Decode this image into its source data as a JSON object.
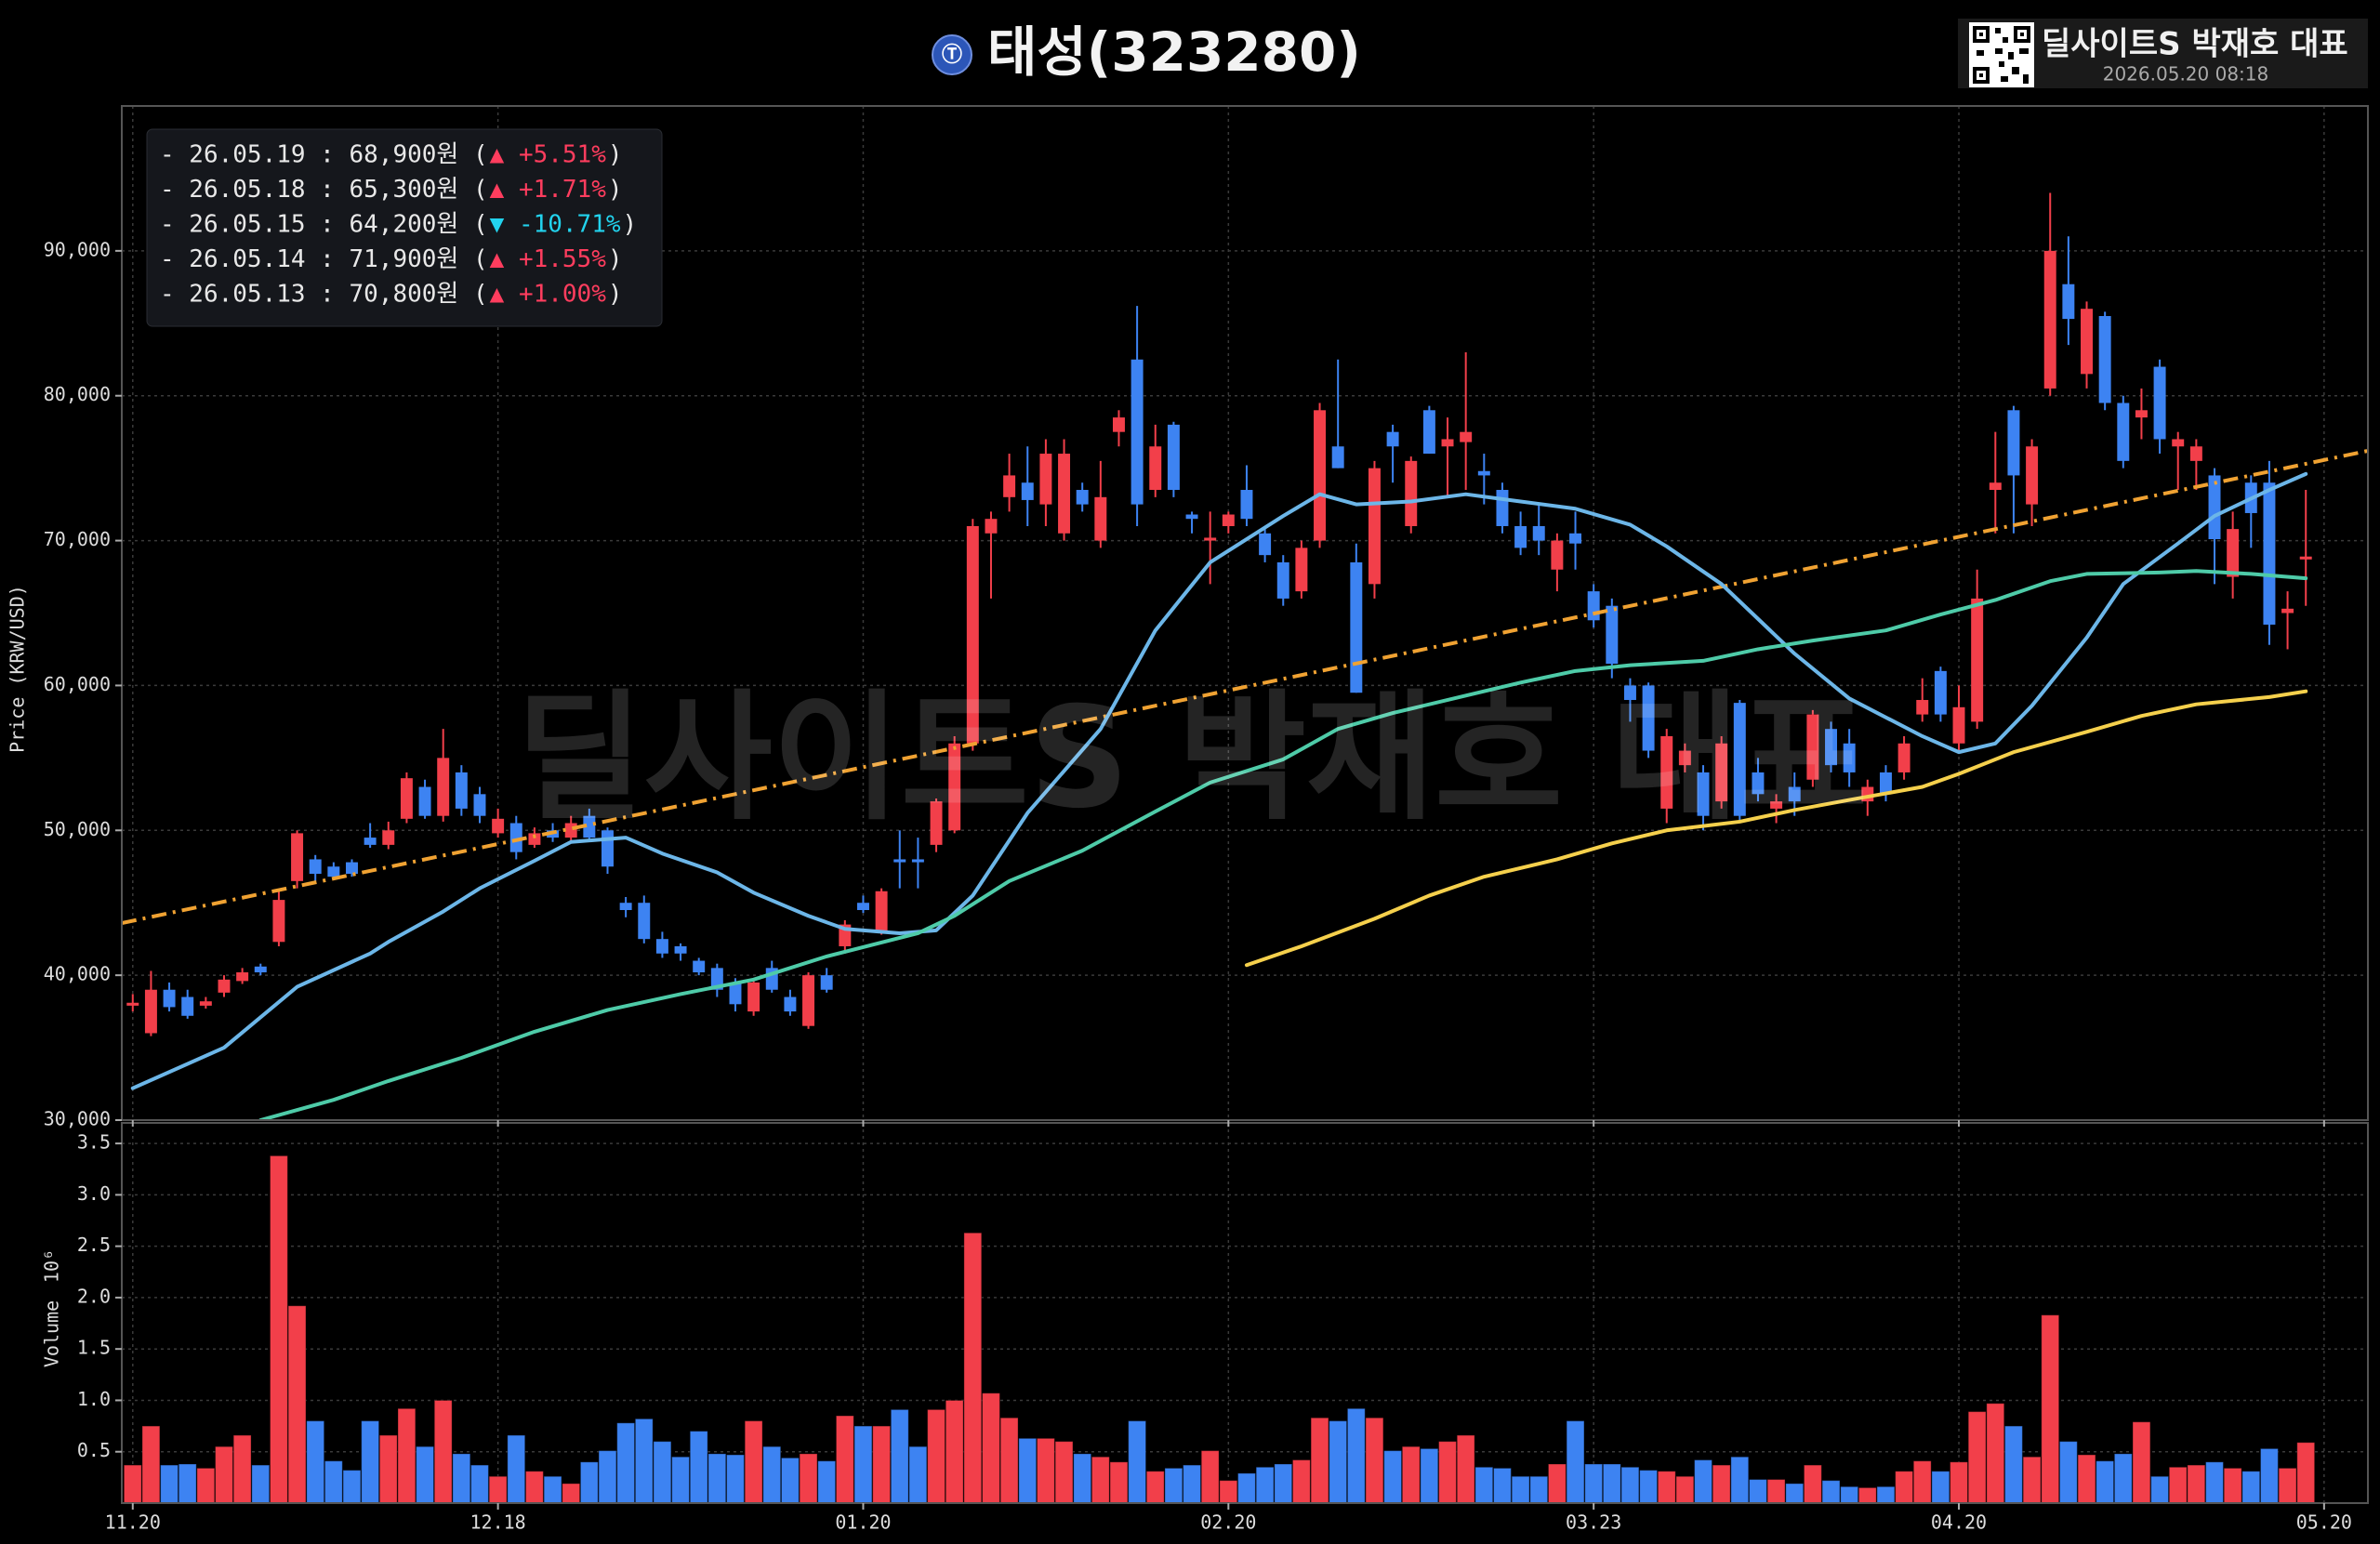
{
  "header": {
    "brand": "딜사이트S 박재호 대표",
    "timestamp": "2026.05.20 08:18"
  },
  "watermark": "딜사이트S 박재호 대표",
  "legend": [
    {
      "text": "- 26.05.19 : 68,900원 (",
      "change": "▲ +5.51%",
      "end": ")",
      "color": "#ff3d5e"
    },
    {
      "text": "- 26.05.18 : 65,300원 (",
      "change": "▲ +1.71%",
      "end": ")",
      "color": "#ff3d5e"
    },
    {
      "text": "- 26.05.15 : 64,200원 (",
      "change": "▼ -10.71%",
      "end": ")",
      "color": "#22d3ee"
    },
    {
      "text": "- 26.05.14 : 71,900원 (",
      "change": "▲ +1.55%",
      "end": ")",
      "color": "#ff3d5e"
    },
    {
      "text": "- 26.05.13 : 70,800원 (",
      "change": "▲ +1.00%",
      "end": ")",
      "color": "#ff3d5e"
    }
  ],
  "chart_data": [
    {
      "type": "candlestick",
      "title": "태성(323280)",
      "ylabel": "Price (KRW/USD)",
      "up_color": "#f23f4a",
      "down_color": "#3d83f2",
      "grid": true,
      "ylim": [
        30000,
        100000
      ],
      "yticks": [
        {
          "value": 30000,
          "label": "30,000"
        },
        {
          "value": 40000,
          "label": "40,000"
        },
        {
          "value": 50000,
          "label": "50,000"
        },
        {
          "value": 60000,
          "label": "60,000"
        },
        {
          "value": 70000,
          "label": "70,000"
        },
        {
          "value": 80000,
          "label": "80,000"
        },
        {
          "value": 90000,
          "label": "90,000"
        }
      ],
      "open": [
        37900,
        36000,
        39000,
        38500,
        37900,
        38800,
        39600,
        40600,
        42300,
        46500,
        48000,
        47500,
        47800,
        49500,
        49000,
        50800,
        53000,
        51000,
        54000,
        52500,
        49800,
        50500,
        49000,
        50000,
        49500,
        51000,
        50000,
        45000,
        45000,
        42500,
        42000,
        41000,
        40500,
        39500,
        37500,
        40500,
        38500,
        36500,
        40000,
        42000,
        45000,
        43000,
        48000,
        48000,
        49000,
        50000,
        56000,
        70500,
        73000,
        74000,
        72500,
        70500,
        73500,
        70000,
        77500,
        82500,
        73500,
        78000,
        71800,
        70000,
        71000,
        73500,
        70500,
        68500,
        66500,
        70000,
        76500,
        68500,
        67000,
        77500,
        71000,
        79000,
        76500,
        76800,
        74800,
        73500,
        71000,
        71000,
        68000,
        70500,
        66500,
        65500,
        60000,
        60000,
        51500,
        54500,
        54000,
        52000,
        58800,
        54000,
        51500,
        53000,
        53500,
        57000,
        56000,
        52000,
        54000,
        54000,
        58000,
        61000,
        56000,
        57500,
        73500,
        79000,
        72500,
        80500,
        87700,
        81500,
        85500,
        79500,
        78500,
        82000,
        76500,
        75500,
        74500,
        67500,
        74000,
        74000,
        65000,
        68700
      ],
      "high": [
        38700,
        40300,
        39500,
        39000,
        38500,
        40000,
        40500,
        40800,
        45800,
        50000,
        48300,
        47800,
        48000,
        50500,
        50600,
        54000,
        53500,
        57000,
        54500,
        53000,
        51500,
        51000,
        50200,
        50500,
        51000,
        51500,
        50200,
        45400,
        45500,
        43000,
        42200,
        41200,
        40800,
        39800,
        39800,
        41000,
        39000,
        40200,
        40500,
        43800,
        45500,
        46000,
        50000,
        49500,
        52200,
        56500,
        71500,
        72000,
        76000,
        76500,
        77000,
        77000,
        74000,
        75500,
        79000,
        86200,
        78000,
        78200,
        72000,
        72000,
        72000,
        75200,
        71000,
        69000,
        70000,
        79500,
        82500,
        69800,
        75500,
        78000,
        75800,
        79300,
        78500,
        83000,
        76000,
        74000,
        72000,
        72500,
        70500,
        72000,
        67000,
        66000,
        60500,
        60200,
        57000,
        56000,
        54500,
        56500,
        59000,
        55000,
        52500,
        54000,
        58300,
        57500,
        57000,
        53500,
        54500,
        56500,
        60500,
        61300,
        60000,
        68000,
        77500,
        79300,
        77000,
        94000,
        91000,
        86500,
        85800,
        80000,
        80500,
        82500,
        77500,
        77000,
        75000,
        72000,
        74500,
        75500,
        66500,
        73500
      ],
      "low": [
        37500,
        35800,
        37500,
        37000,
        37700,
        38500,
        39400,
        40000,
        42000,
        46000,
        46500,
        46600,
        46800,
        48800,
        48700,
        50500,
        50800,
        50600,
        51000,
        50500,
        49500,
        48000,
        48800,
        49200,
        49300,
        49200,
        47000,
        44000,
        42200,
        41200,
        41000,
        40000,
        38500,
        37500,
        37200,
        38800,
        37200,
        36300,
        38800,
        41500,
        44300,
        42800,
        46000,
        46000,
        48500,
        49800,
        55500,
        66000,
        72000,
        71000,
        71000,
        70000,
        72000,
        69500,
        76500,
        71000,
        73000,
        73000,
        70500,
        67000,
        70500,
        71000,
        68500,
        65500,
        66000,
        69500,
        75000,
        59500,
        66000,
        74000,
        70500,
        76000,
        73000,
        73500,
        72500,
        70500,
        69000,
        69000,
        66500,
        68000,
        64000,
        60500,
        57500,
        55000,
        50500,
        54000,
        50000,
        51500,
        50500,
        52000,
        50500,
        51000,
        53000,
        54000,
        53000,
        51000,
        52000,
        53500,
        57500,
        57500,
        55500,
        57000,
        70500,
        70500,
        71000,
        80000,
        83500,
        80500,
        79000,
        75000,
        77000,
        76000,
        73500,
        73500,
        67000,
        66000,
        69500,
        62800,
        62500,
        65500
      ],
      "close": [
        38100,
        39000,
        37800,
        37200,
        38200,
        39700,
        40200,
        40200,
        45200,
        49800,
        47000,
        46800,
        47000,
        49000,
        50000,
        53600,
        51000,
        55000,
        51500,
        51000,
        50800,
        48500,
        49800,
        49500,
        50500,
        49500,
        47500,
        44500,
        42500,
        41500,
        41500,
        40200,
        39000,
        38000,
        39500,
        39000,
        37500,
        40000,
        39000,
        43500,
        44500,
        45800,
        47800,
        47800,
        52000,
        56000,
        71000,
        71500,
        74500,
        72800,
        76000,
        76000,
        72500,
        73000,
        78500,
        72500,
        76500,
        73500,
        71500,
        70200,
        71800,
        71500,
        69000,
        66000,
        69500,
        79000,
        75000,
        59500,
        75000,
        76500,
        75500,
        76000,
        77000,
        77500,
        74500,
        71000,
        69500,
        70000,
        70000,
        69800,
        64500,
        61500,
        59000,
        55500,
        56500,
        55500,
        51000,
        56000,
        51000,
        52500,
        52000,
        52000,
        58000,
        54500,
        54000,
        53000,
        52500,
        56000,
        59000,
        58000,
        58500,
        66000,
        74000,
        74500,
        76500,
        90000,
        85300,
        86000,
        79500,
        75500,
        79000,
        77000,
        77000,
        76500,
        70100,
        70800,
        71900,
        64200,
        65300,
        68900
      ],
      "series": [
        {
          "color": "#f0a232",
          "style": "dashdot",
          "x": [
            -0.6,
            122.4
          ],
          "values": [
            43600,
            76200
          ]
        },
        {
          "color": "#6cb6e8",
          "x": [
            0,
            5,
            9,
            13,
            14,
            17,
            19,
            22,
            24,
            27,
            29,
            32,
            34,
            37,
            39,
            42,
            44,
            46,
            49,
            53,
            56,
            59,
            63,
            65,
            67,
            70,
            73,
            76,
            79,
            82,
            84,
            87,
            91,
            94,
            98,
            100,
            102,
            104,
            107,
            109,
            112,
            114,
            117,
            119
          ],
          "values": [
            32200,
            35000,
            39200,
            41500,
            42300,
            44400,
            46000,
            47900,
            49200,
            49500,
            48400,
            47100,
            45700,
            44100,
            43200,
            42900,
            43100,
            45500,
            51200,
            57000,
            63800,
            68500,
            71700,
            73200,
            72500,
            72700,
            73200,
            72700,
            72200,
            71100,
            69600,
            67000,
            62200,
            59100,
            56500,
            55400,
            56000,
            58600,
            63300,
            67000,
            69800,
            71700,
            73500,
            74600
          ]
        },
        {
          "color": "#4ecba8",
          "x": [
            7,
            11,
            14,
            18,
            22,
            26,
            30,
            34,
            38,
            43,
            45,
            48,
            52,
            56,
            59,
            63,
            66,
            69,
            73,
            76,
            79,
            82,
            86,
            89,
            92,
            96,
            99,
            102,
            105,
            107,
            111,
            113,
            116,
            119
          ],
          "values": [
            30000,
            31400,
            32700,
            34300,
            36100,
            37600,
            38700,
            39700,
            41300,
            42900,
            44100,
            46500,
            48600,
            51300,
            53300,
            54900,
            57000,
            58100,
            59300,
            60200,
            61000,
            61400,
            61700,
            62500,
            63100,
            63800,
            64900,
            65900,
            67200,
            67700,
            67800,
            67900,
            67700,
            67400
          ]
        },
        {
          "color": "#f5d04c",
          "x": [
            61,
            64,
            68,
            71,
            74,
            78,
            81,
            84,
            88,
            91,
            94,
            98,
            100,
            103,
            107,
            110,
            113,
            117,
            119
          ],
          "values": [
            40700,
            42000,
            43900,
            45500,
            46800,
            48000,
            49100,
            50000,
            50600,
            51400,
            52100,
            53000,
            53900,
            55400,
            56800,
            57900,
            58700,
            59200,
            59600
          ]
        }
      ]
    },
    {
      "type": "volume",
      "ylabel": "Volume",
      "ylabel_unit": "10⁶",
      "grid": true,
      "xlim": [
        -0.6,
        122.4
      ],
      "xticks": [
        {
          "value": 0,
          "label": "11.20"
        },
        {
          "value": 20,
          "label": "12.18"
        },
        {
          "value": 40,
          "label": "01.20"
        },
        {
          "value": 60,
          "label": "02.20"
        },
        {
          "value": 80,
          "label": "03.23"
        },
        {
          "value": 100,
          "label": "04.20"
        },
        {
          "value": 120,
          "label": "05.20"
        }
      ],
      "ylim": [
        0,
        3.7
      ],
      "yticks": [
        0.5,
        {
          "value": 1,
          "label": "1.0"
        },
        1.5,
        {
          "value": 2,
          "label": "2.0"
        },
        2.5,
        {
          "value": 3,
          "label": "3.0"
        },
        3.5
      ],
      "values": [
        0.37,
        0.75,
        0.37,
        0.38,
        0.34,
        0.55,
        0.66,
        0.37,
        3.38,
        1.92,
        0.8,
        0.41,
        0.32,
        0.8,
        0.66,
        0.92,
        0.55,
        1.0,
        0.48,
        0.37,
        0.26,
        0.66,
        0.31,
        0.26,
        0.19,
        0.4,
        0.51,
        0.78,
        0.82,
        0.6,
        0.45,
        0.7,
        0.48,
        0.47,
        0.8,
        0.55,
        0.44,
        0.48,
        0.41,
        0.85,
        0.75,
        0.75,
        0.91,
        0.55,
        0.91,
        1.0,
        2.63,
        1.07,
        0.83,
        0.63,
        0.63,
        0.6,
        0.48,
        0.45,
        0.4,
        0.8,
        0.31,
        0.34,
        0.37,
        0.51,
        0.22,
        0.29,
        0.35,
        0.38,
        0.42,
        0.83,
        0.8,
        0.92,
        0.83,
        0.51,
        0.55,
        0.53,
        0.6,
        0.66,
        0.35,
        0.34,
        0.26,
        0.26,
        0.38,
        0.8,
        0.38,
        0.38,
        0.35,
        0.32,
        0.31,
        0.26,
        0.42,
        0.37,
        0.45,
        0.23,
        0.23,
        0.19,
        0.37,
        0.22,
        0.16,
        0.15,
        0.16,
        0.31,
        0.41,
        0.31,
        0.4,
        0.89,
        0.97,
        0.75,
        0.45,
        1.83,
        0.6,
        0.47,
        0.41,
        0.48,
        0.79,
        0.26,
        0.35,
        0.37,
        0.4,
        0.34,
        0.31,
        0.53,
        0.34,
        0.59
      ]
    }
  ]
}
